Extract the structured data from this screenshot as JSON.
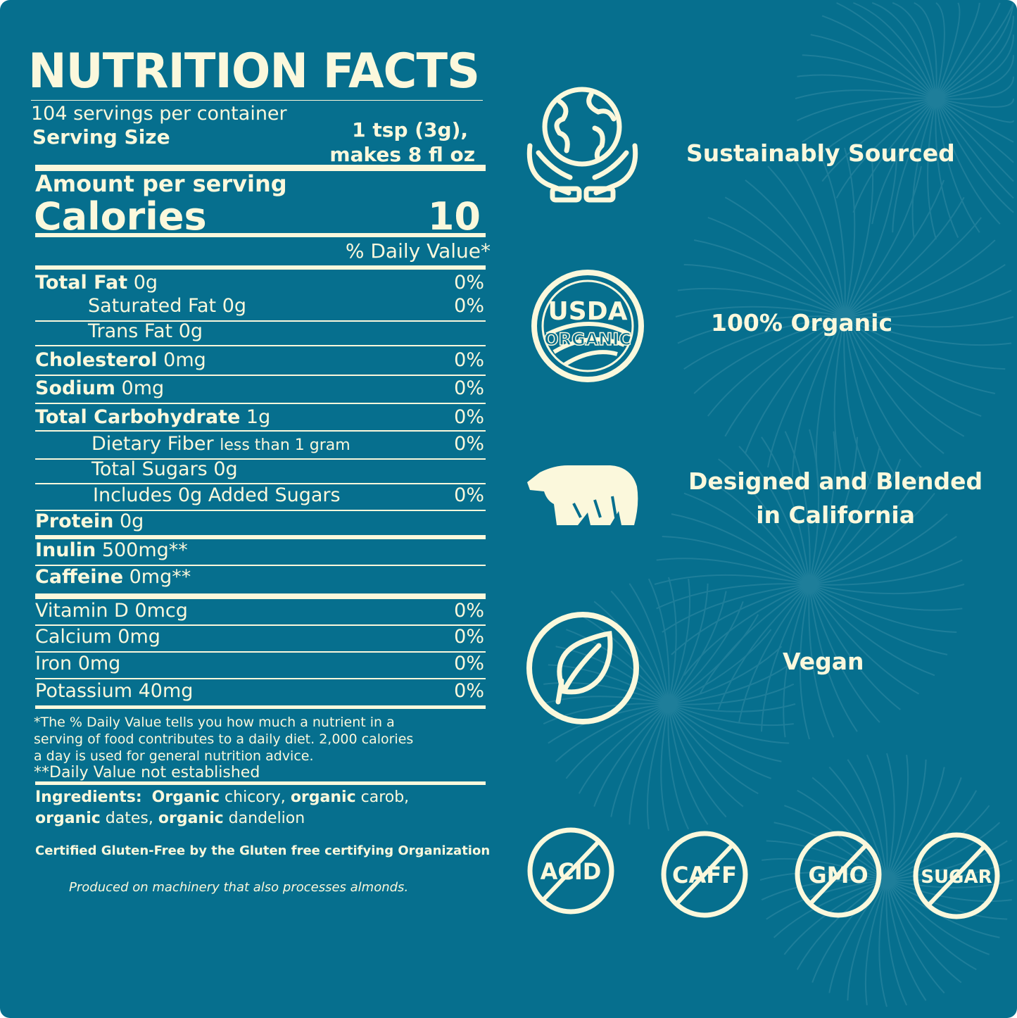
{
  "colors": {
    "background": "#066f8e",
    "foreground": "#fbf8dc"
  },
  "panel": {
    "title": "NUTRITION FACTS",
    "servings": "104 servings per container",
    "serving_size_label": "Serving Size",
    "serving_size_line1": "1 tsp (3g),",
    "serving_size_line2": "makes 8 fl oz",
    "amount_per_serving": "Amount per serving",
    "calories_label": "Calories",
    "calories_value": "10",
    "daily_value_header": "% Daily Value*",
    "rows": [
      {
        "label": "Total Fat",
        "value": "0g",
        "dv": "0%",
        "bold": true,
        "indent": 0
      },
      {
        "label": "Saturated Fat",
        "value": "0g",
        "dv": "0%",
        "bold": false,
        "indent": 75
      },
      {
        "label": "Trans Fat",
        "value": "0g",
        "dv": "",
        "bold": false,
        "indent": 75
      },
      {
        "label": "Cholesterol",
        "value": "0mg",
        "dv": "0%",
        "bold": true,
        "indent": 0
      },
      {
        "label": "Sodium",
        "value": "0mg",
        "dv": "0%",
        "bold": true,
        "indent": 0
      },
      {
        "label": "Total Carbohydrate",
        "value": "1g",
        "dv": "0%",
        "bold": true,
        "indent": 0
      },
      {
        "label": "Dietary Fiber",
        "value": "less than 1 gram",
        "dv": "0%",
        "bold": false,
        "indent": 80,
        "small": true
      },
      {
        "label": "Total Sugars",
        "value": "0g",
        "dv": "",
        "bold": false,
        "indent": 80
      },
      {
        "label": "Includes 0g Added Sugars",
        "value": "",
        "dv": "0%",
        "bold": false,
        "indent": 82
      },
      {
        "label": "Protein",
        "value": "0g",
        "dv": "",
        "bold": true,
        "indent": 0
      },
      {
        "label": "Inulin",
        "value": "500mg**",
        "dv": "",
        "bold": true,
        "indent": 0
      },
      {
        "label": "Caffeine",
        "value": "0mg**",
        "dv": "",
        "bold": true,
        "indent": 0
      },
      {
        "label": "Vitamin D",
        "value": "0mcg",
        "dv": "0%",
        "bold": false,
        "indent": 0
      },
      {
        "label": "Calcium",
        "value": "0mg",
        "dv": "0%",
        "bold": false,
        "indent": 0
      },
      {
        "label": "Iron",
        "value": "0mg",
        "dv": "0%",
        "bold": false,
        "indent": 0
      },
      {
        "label": "Potassium",
        "value": "40mg",
        "dv": "0%",
        "bold": false,
        "indent": 0
      }
    ],
    "footnote_1": "*The % Daily Value tells you how much a nutrient in a",
    "footnote_2": "serving of food contributes to a daily diet. 2,000 calories",
    "footnote_3": "a day is used for general nutrition advice.",
    "footnote_4": "**Daily Value not established",
    "ingredients_label": "Ingredients:",
    "ingredients": [
      {
        "bold": "Organic",
        "text": " chicory, "
      },
      {
        "bold": "organic",
        "text": " carob,"
      },
      {
        "bold": "organic",
        "text": " dates, "
      },
      {
        "bold": "organic",
        "text": " dandelion"
      }
    ],
    "gluten_free": "Certified Gluten-Free by the Gluten free certifying Organization",
    "allergen": "Produced on machinery that also processes almonds."
  },
  "features": [
    {
      "icon": "globe-hands-icon",
      "label": "Sustainably Sourced"
    },
    {
      "icon": "usda-organic-seal-icon",
      "label": "100% Organic",
      "seal_top": "USDA",
      "seal_bottom": "ORGANIC"
    },
    {
      "icon": "bear-icon",
      "label_line1": "Designed and Blended",
      "label_line2": "in California"
    },
    {
      "icon": "leaf-icon",
      "label": "Vegan"
    }
  ],
  "badges": [
    {
      "icon": "no-acid-icon",
      "text": "ACID"
    },
    {
      "icon": "no-caffeine-icon",
      "text": "CAFF"
    },
    {
      "icon": "no-gmo-icon",
      "text": "GMO"
    },
    {
      "icon": "no-sugar-icon",
      "text": "SUGAR"
    }
  ]
}
